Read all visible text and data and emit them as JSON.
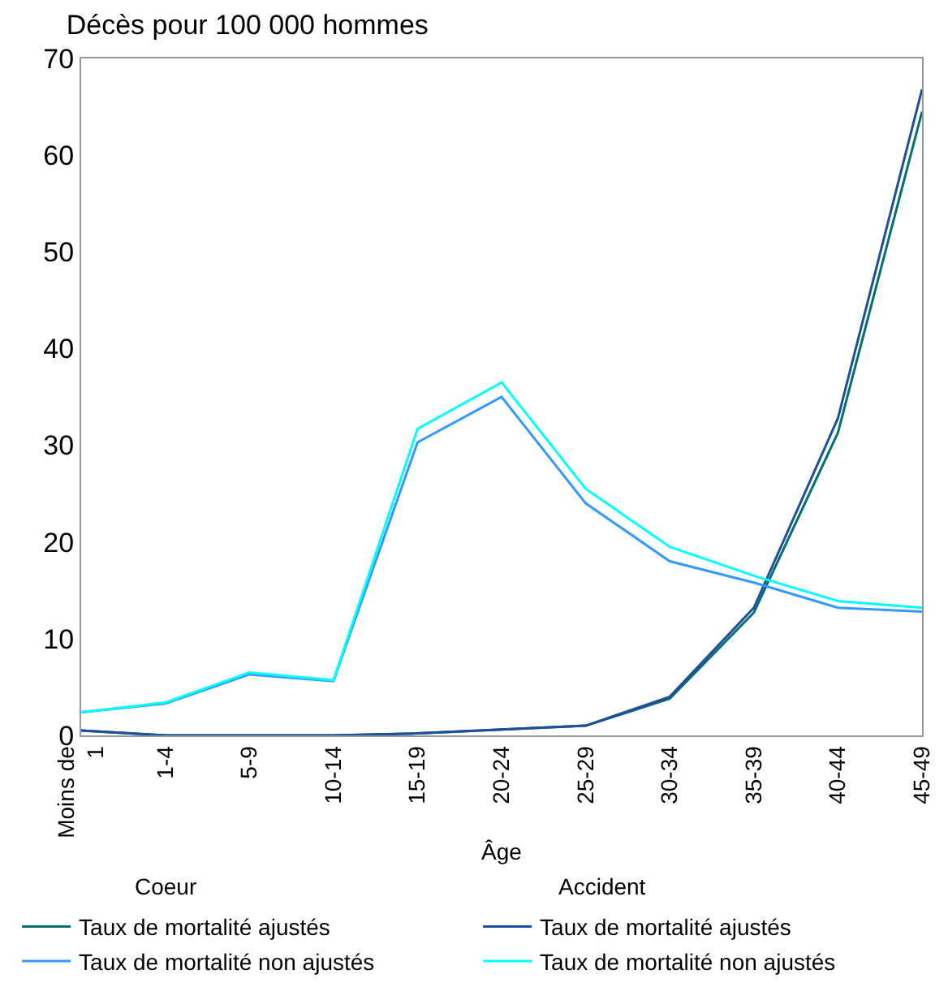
{
  "chart_data": {
    "type": "line",
    "title": "Décès pour 100 000 hommes",
    "xlabel": "Âge",
    "categories": [
      "Moins de\n1",
      "1-4",
      "5-9",
      "10-14",
      "15-19",
      "20-24",
      "25-29",
      "30-34",
      "35-39",
      "40-44",
      "45-49"
    ],
    "series": [
      {
        "name": "Taux de mortalité ajustés",
        "color": "#007070",
        "values": [
          0.5,
          0,
          0,
          0,
          0.2,
          0.6,
          1.0,
          3.8,
          12.7,
          31.3,
          64.5
        ]
      },
      {
        "name": "Taux de mortalité ajustés",
        "color": "#1f4e9c",
        "values": [
          0.5,
          0,
          0,
          0,
          0.2,
          0.6,
          1.0,
          4.0,
          13.2,
          32.8,
          66.8
        ]
      },
      {
        "name": "Taux de mortalité non ajustés",
        "color": "#3399ff",
        "values": [
          2.4,
          3.3,
          6.3,
          5.6,
          30.3,
          35.0,
          24.0,
          18.0,
          15.8,
          13.2,
          12.8
        ]
      },
      {
        "name": "Taux de mortalité non ajustés",
        "color": "#00ffff",
        "values": [
          2.4,
          3.4,
          6.5,
          5.7,
          31.7,
          36.5,
          25.5,
          19.5,
          16.5,
          13.9,
          13.2
        ]
      }
    ],
    "annotations": [
      "Coeur",
      "Accident"
    ],
    "ylim": [
      0,
      70
    ],
    "yticks": [
      0,
      10,
      20,
      30,
      40,
      50,
      60,
      70
    ],
    "legend": "bottom",
    "marker": "none",
    "line_style": "solid"
  }
}
